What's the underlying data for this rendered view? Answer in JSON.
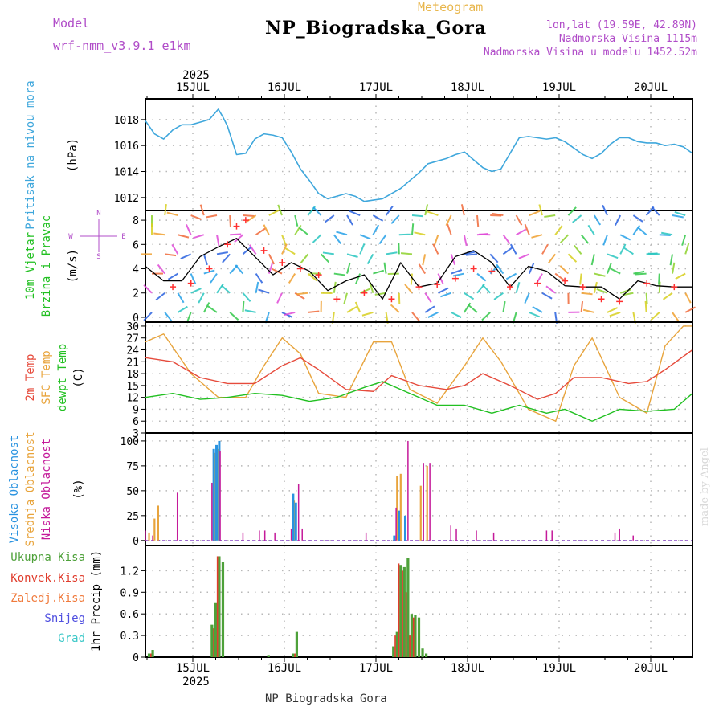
{
  "header": {
    "title": "NP_Biogradska_Gora",
    "subtitle": "Meteogram",
    "model_label": "Model",
    "model_value": "wrf-nmm_v3.9.1 e1km",
    "location_coords": "lon,lat (19.59E, 42.89N)",
    "location_altitude": "Nadmorska Visina 1115m",
    "location_model_altitude": "Nadmorska Visina u modelu 1452.52m"
  },
  "footer_label": "NP_Biogradska_Gora",
  "watermark": "made by Angel",
  "colors": {
    "pressure": "#3fa7dc",
    "t2m": "#e64b3c",
    "sfc": "#e8a43c",
    "dew": "#22c022",
    "high_cloud": "#2a93e0",
    "mid_cloud": "#e8a43c",
    "low_cloud": "#c41a9a",
    "total_precip": "#4ea13a",
    "convective_precip": "#e03c2c",
    "wind_line": "#000000",
    "gust_marker": "#ff3030"
  },
  "chart_data": [
    {
      "type": "line",
      "panel": "pressure",
      "ylabel": [
        "Pritisak na nivou mora",
        "(hPa)"
      ],
      "year": "2025",
      "x_tick_labels": [
        "15JUL",
        "16JUL",
        "17JUL",
        "18JUL",
        "19JUL",
        "20JUL"
      ],
      "ylim": [
        1011,
        1019.6
      ],
      "yticks": [
        1012,
        1014,
        1016,
        1018
      ],
      "grid": true,
      "series": [
        {
          "x": [
            0,
            0.1,
            0.2,
            0.3,
            0.4,
            0.5,
            0.6,
            0.7,
            0.8,
            0.85,
            0.9,
            1.0,
            1.1,
            1.2,
            1.3,
            1.4,
            1.5,
            1.6,
            1.7,
            1.8,
            1.9,
            2.0,
            2.1,
            2.2,
            2.3,
            2.4,
            2.5,
            2.6,
            2.7,
            2.8,
            2.9,
            3.0,
            3.1,
            3.2,
            3.3,
            3.4,
            3.5,
            3.6,
            3.7,
            3.8,
            3.9,
            4.0,
            4.1,
            4.2,
            4.3,
            4.4,
            4.5,
            4.6,
            4.7,
            4.8,
            4.9,
            5.0,
            5.1,
            5.2,
            5.3,
            5.4,
            5.5,
            5.6,
            5.7,
            5.8,
            5.9,
            6.0
          ],
          "y": [
            1017.9,
            1016.9,
            1016.5,
            1017.2,
            1017.6,
            1017.6,
            1017.8,
            1018.0,
            1018.8,
            1018.2,
            1017.5,
            1015.3,
            1015.4,
            1016.5,
            1016.9,
            1016.8,
            1016.6,
            1015.5,
            1014.2,
            1013.3,
            1012.3,
            1011.9,
            1012.1,
            1012.3,
            1012.1,
            1011.7,
            1011.8,
            1011.9,
            1012.3,
            1012.7,
            1013.3,
            1013.9,
            1014.6,
            1014.8,
            1015.0,
            1015.3,
            1015.5,
            1014.9,
            1014.3,
            1014.0,
            1014.2,
            1015.4,
            1016.6,
            1016.7,
            1016.6,
            1016.5,
            1016.6,
            1016.3,
            1015.8,
            1015.3,
            1015.0,
            1015.4,
            1016.1,
            1016.6,
            1016.6,
            1016.3,
            1016.2,
            1016.2,
            1016.0,
            1016.1,
            1015.9,
            1015.4
          ]
        }
      ]
    },
    {
      "type": "line",
      "panel": "wind",
      "ylabel": [
        "10m Vjetar",
        "Brzina i Pravac",
        "(m/s)"
      ],
      "compass_legend": [
        "N",
        "W",
        "E",
        "S"
      ],
      "ylim": [
        -0.4,
        8.8
      ],
      "yticks": [
        0,
        2,
        4,
        6,
        8
      ],
      "grid": true,
      "series": [
        {
          "name": "speed",
          "x": [
            0,
            0.2,
            0.4,
            0.6,
            0.8,
            1.0,
            1.2,
            1.4,
            1.6,
            1.8,
            2.0,
            2.2,
            2.4,
            2.6,
            2.8,
            3.0,
            3.2,
            3.4,
            3.6,
            3.8,
            4.0,
            4.2,
            4.4,
            4.6,
            4.8,
            5.0,
            5.2,
            5.4,
            5.6,
            5.8,
            6.0
          ],
          "y": [
            4.2,
            3.0,
            3.0,
            5.0,
            5.8,
            6.5,
            5.0,
            3.5,
            4.5,
            3.8,
            2.2,
            3.0,
            3.5,
            1.5,
            4.5,
            2.5,
            2.8,
            5.0,
            5.5,
            4.5,
            2.5,
            4.2,
            3.8,
            2.6,
            2.5,
            2.5,
            1.5,
            3.0,
            2.6,
            2.5,
            2.5
          ]
        },
        {
          "name": "gusts",
          "x": [
            0.3,
            0.5,
            0.7,
            0.9,
            1.0,
            1.1,
            1.3,
            1.5,
            1.7,
            1.9,
            2.1,
            2.4,
            2.7,
            3.0,
            3.2,
            3.4,
            3.6,
            3.8,
            4.0,
            4.3,
            4.6,
            4.8,
            5.0,
            5.2,
            5.5,
            5.8
          ],
          "y": [
            2.5,
            2.8,
            4.0,
            6.0,
            7.5,
            8.0,
            5.5,
            4.5,
            4.0,
            3.5,
            1.5,
            2.0,
            1.5,
            2.5,
            2.7,
            3.2,
            4.0,
            3.8,
            2.5,
            2.8,
            3.0,
            2.5,
            1.5,
            1.3,
            2.8,
            2.5
          ]
        }
      ]
    },
    {
      "type": "line",
      "panel": "temperature",
      "ylabel": [
        "2m Temp",
        "SFC Temp",
        "dewpt Temp",
        "(C)"
      ],
      "ylim": [
        3,
        31
      ],
      "yticks": [
        3,
        6,
        9,
        12,
        15,
        18,
        21,
        24,
        27,
        30
      ],
      "grid": true,
      "series": [
        {
          "name": "2m Temp",
          "x": [
            0,
            0.3,
            0.6,
            0.9,
            1.2,
            1.5,
            1.7,
            1.9,
            2.2,
            2.5,
            2.7,
            3.0,
            3.3,
            3.5,
            3.7,
            4.0,
            4.3,
            4.5,
            4.7,
            5.0,
            5.3,
            5.5,
            5.7,
            6.0
          ],
          "y": [
            22,
            21,
            17,
            15.5,
            15.5,
            20,
            22,
            19,
            14,
            13.5,
            17.5,
            15,
            14,
            15,
            18,
            15,
            11.5,
            13,
            17,
            17,
            15.5,
            16,
            19,
            24
          ]
        },
        {
          "name": "SFC Temp",
          "x": [
            0,
            0.2,
            0.5,
            0.8,
            1.1,
            1.3,
            1.5,
            1.7,
            1.9,
            2.2,
            2.5,
            2.7,
            2.9,
            3.2,
            3.5,
            3.7,
            3.9,
            4.2,
            4.5,
            4.7,
            4.9,
            5.2,
            5.5,
            5.7,
            5.9,
            6.0
          ],
          "y": [
            26,
            28,
            18,
            12,
            12,
            20,
            27,
            23,
            13,
            12,
            26,
            26,
            14,
            10.5,
            20,
            27,
            21,
            9,
            6,
            20,
            27,
            12,
            8,
            25,
            30,
            30
          ]
        },
        {
          "name": "dewpt Temp",
          "x": [
            0,
            0.3,
            0.6,
            0.9,
            1.2,
            1.5,
            1.8,
            2.1,
            2.4,
            2.6,
            2.9,
            3.2,
            3.5,
            3.8,
            4.1,
            4.4,
            4.6,
            4.9,
            5.2,
            5.5,
            5.8,
            6.0
          ],
          "y": [
            12,
            13,
            11.5,
            12,
            13,
            12.5,
            11,
            12,
            14.5,
            16,
            13,
            10,
            10,
            8,
            10,
            8,
            9,
            6,
            9,
            8.5,
            9,
            13
          ]
        }
      ]
    },
    {
      "type": "bar",
      "panel": "clouds",
      "ylabel": [
        "Visoka Oblacnost",
        "Srednja Oblacnost",
        "Niska Oblacnost",
        "(%)"
      ],
      "ylim": [
        -5,
        108
      ],
      "yticks": [
        0,
        25,
        50,
        75,
        100
      ],
      "grid": true,
      "series": [
        {
          "name": "Visoka Oblacnost",
          "x": [
            0.75,
            0.78,
            0.81,
            1.62,
            1.65,
            2.73,
            2.78,
            2.85
          ],
          "y": [
            92,
            96,
            100,
            47,
            38,
            5,
            30,
            25
          ]
        },
        {
          "name": "Srednja Oblacnost",
          "x": [
            0.04,
            0.1,
            0.14,
            0.77,
            0.8,
            1.63,
            2.76,
            2.8,
            3.02,
            3.09
          ],
          "y": [
            8,
            22,
            35,
            88,
            92,
            40,
            65,
            67,
            55,
            75
          ]
        },
        {
          "name": "Niska Oblacnost",
          "x": [
            0,
            0.08,
            0.35,
            0.73,
            0.82,
            1.07,
            1.25,
            1.31,
            1.42,
            1.6,
            1.68,
            1.72,
            2.42,
            2.75,
            2.88,
            3.05,
            3.12,
            3.35,
            3.41,
            3.63,
            3.82,
            4.4,
            4.46,
            5.15,
            5.2,
            5.35
          ],
          "y": [
            10,
            5,
            48,
            58,
            90,
            8,
            10,
            10,
            8,
            12,
            57,
            12,
            8,
            33,
            100,
            78,
            78,
            15,
            12,
            10,
            8,
            10,
            10,
            8,
            12,
            5
          ]
        }
      ]
    },
    {
      "type": "bar",
      "panel": "precipitation",
      "ylabel": [
        "1hr Precip (mm)"
      ],
      "legend": [
        "Ukupna Kisa",
        "Konvek.Kisa",
        "Zaledj.Kisa",
        "Snijeg",
        "Grad"
      ],
      "ylim": [
        0,
        1.55
      ],
      "yticks": [
        0,
        0.3,
        0.6,
        0.9,
        1.2
      ],
      "grid": true,
      "series": [
        {
          "name": "Ukupna Kisa",
          "x": [
            0.04,
            0.08,
            0.73,
            0.77,
            0.81,
            0.85,
            1.35,
            1.62,
            1.66,
            2.72,
            2.76,
            2.8,
            2.84,
            2.88,
            2.92,
            2.96,
            3.0,
            3.04,
            3.08
          ],
          "y": [
            0.05,
            0.1,
            0.45,
            0.75,
            1.4,
            1.32,
            0.03,
            0.05,
            0.35,
            0.15,
            0.35,
            1.28,
            1.25,
            1.38,
            0.6,
            0.58,
            0.55,
            0.12,
            0.05
          ]
        },
        {
          "name": "Konvek.Kisa",
          "x": [
            0.06,
            0.75,
            0.79,
            1.64,
            2.74,
            2.78,
            2.82,
            2.86,
            2.9,
            2.94
          ],
          "y": [
            0.05,
            0.4,
            1.4,
            0.05,
            0.3,
            1.3,
            1.2,
            0.9,
            0.3,
            0.55
          ]
        }
      ]
    }
  ]
}
